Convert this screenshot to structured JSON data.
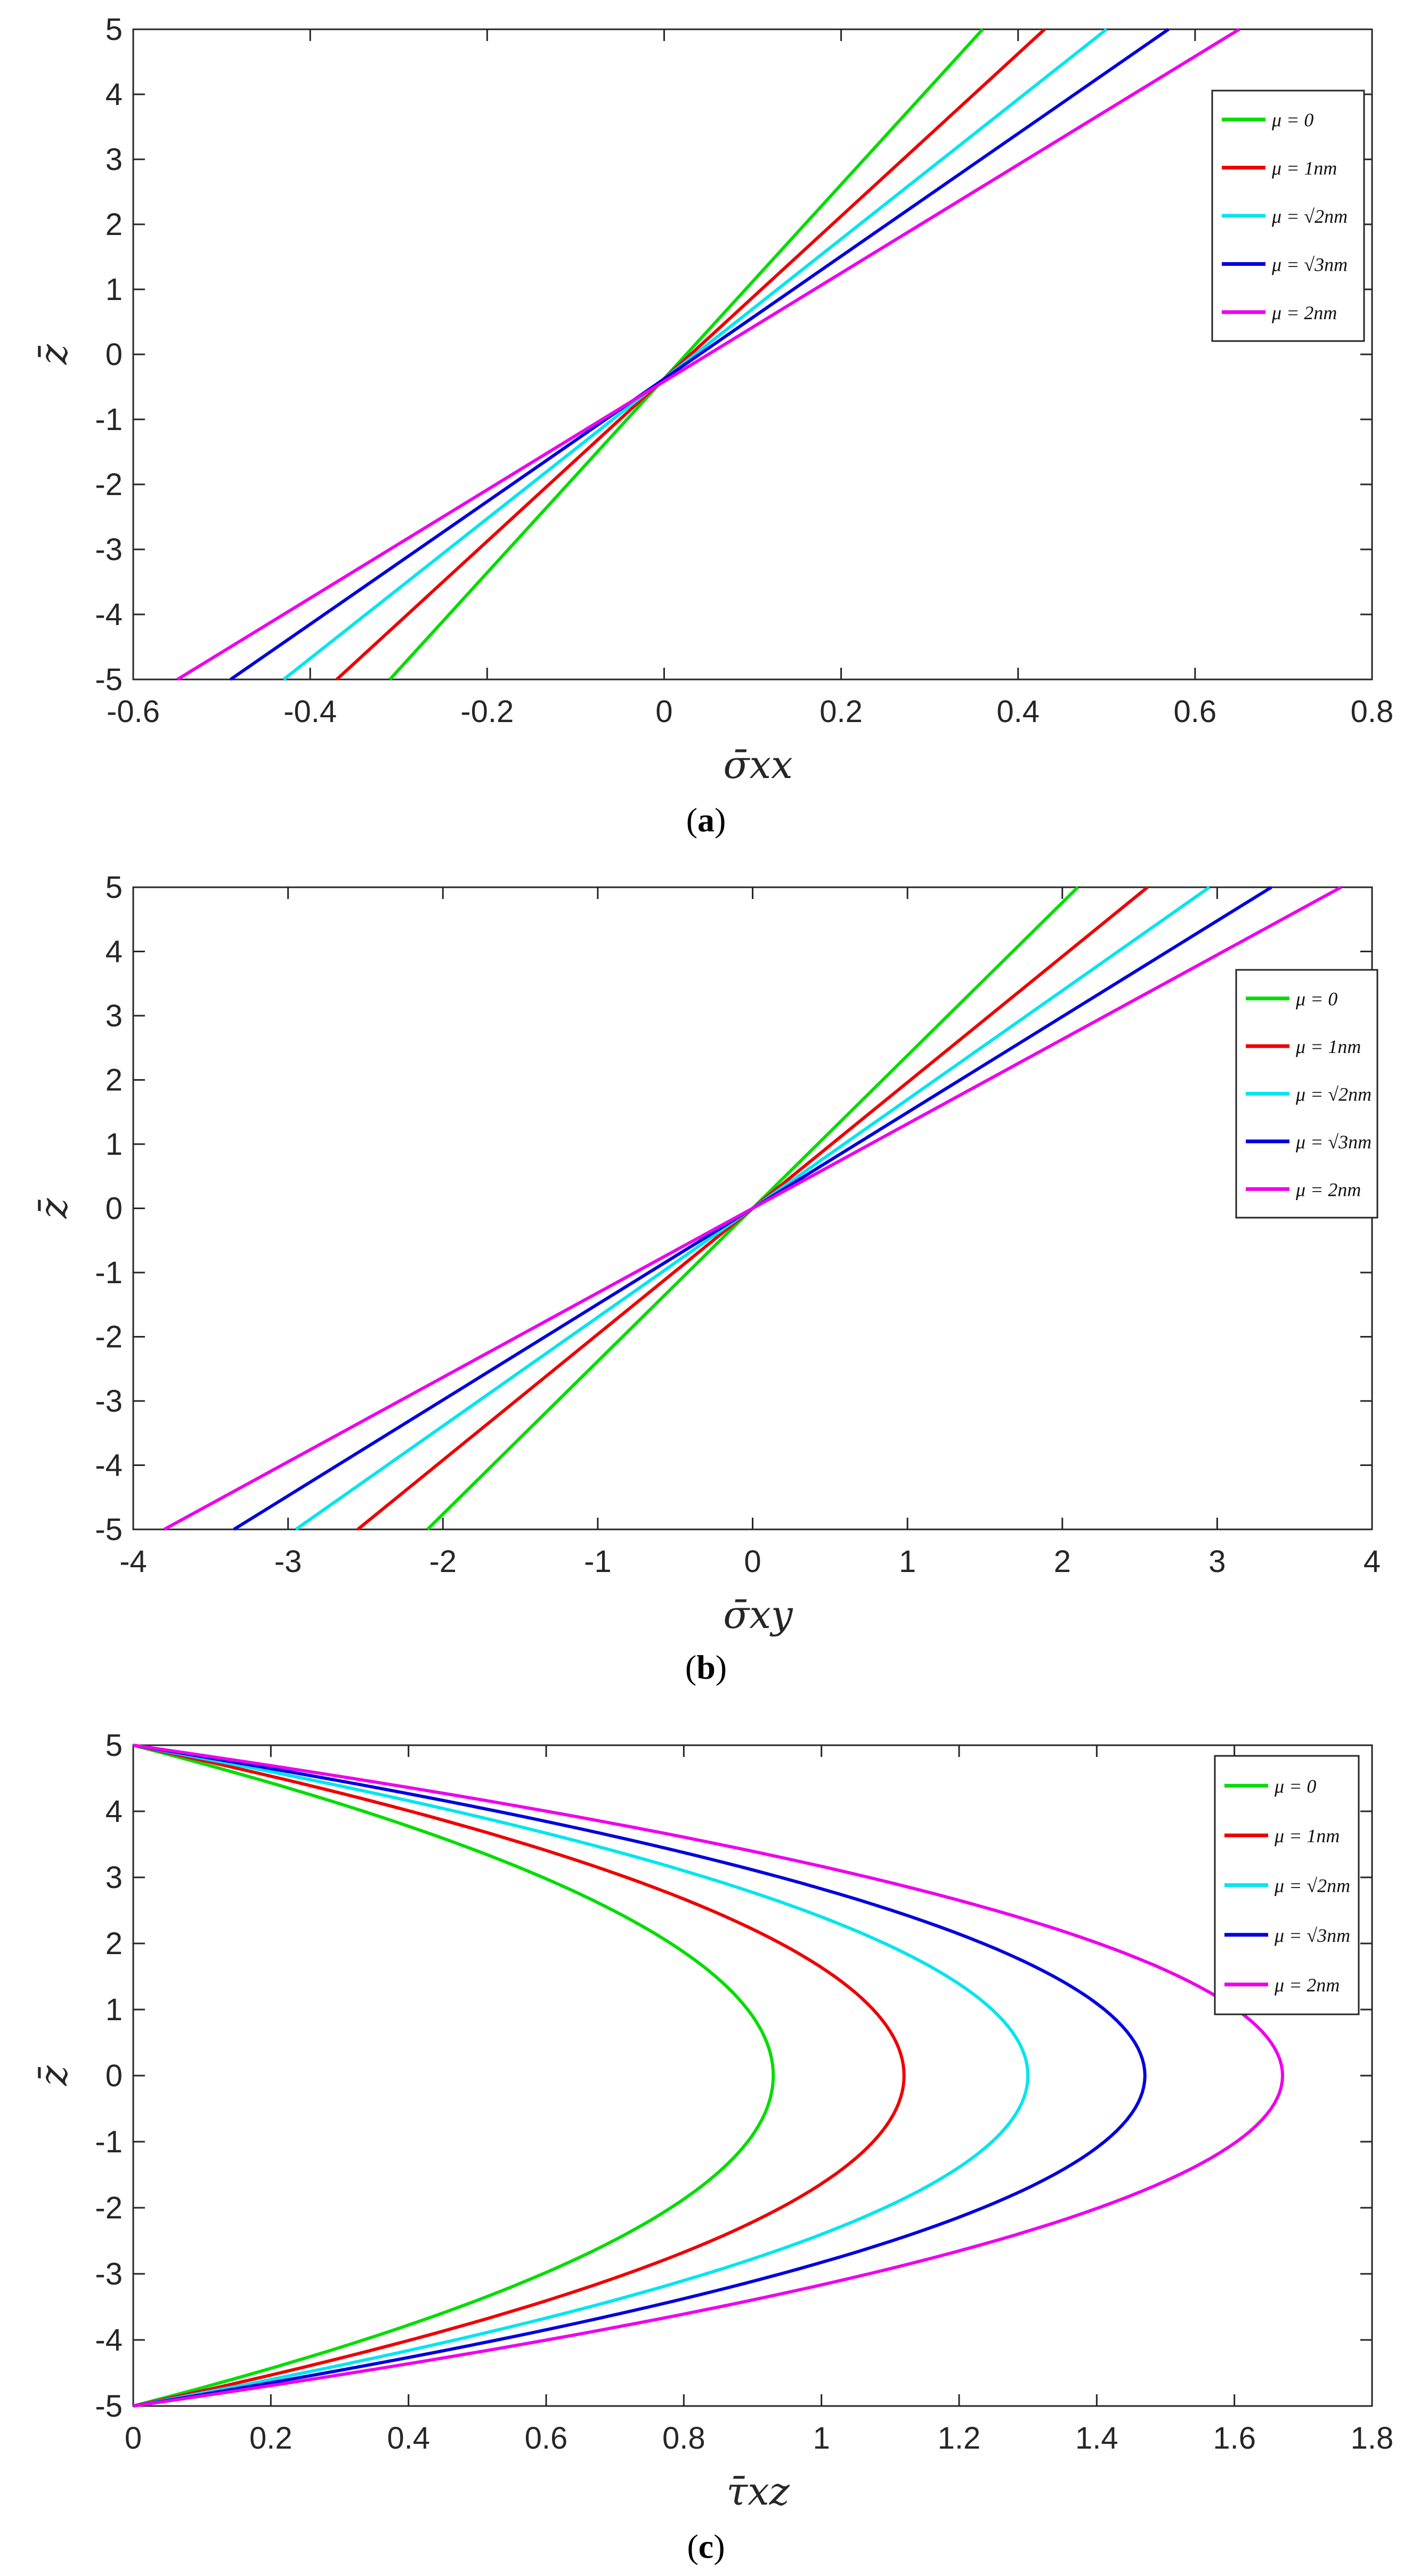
{
  "chart_data": [
    {
      "type": "line",
      "caption": "a",
      "xlabel": "σ̄xx",
      "ylabel": "z̄",
      "xlim": [
        -0.6,
        0.8
      ],
      "ylim": [
        -5,
        5
      ],
      "xticks": [
        "-0.6",
        "-0.4",
        "-0.2",
        "0",
        "0.2",
        "0.4",
        "0.6",
        "0.8"
      ],
      "yticks": [
        "5",
        "4",
        "3",
        "2",
        "1",
        "0",
        "-1",
        "-2",
        "-3",
        "-4",
        "-5"
      ],
      "legend_position": "top-right",
      "series": [
        {
          "name": "μ = 0",
          "color": "#00dd00",
          "profile": "linear",
          "z": [
            -5,
            5
          ],
          "values": [
            -0.31,
            0.36
          ]
        },
        {
          "name": "μ = 1nm",
          "color": "#ee0000",
          "profile": "linear",
          "z": [
            -5,
            5
          ],
          "values": [
            -0.37,
            0.43
          ]
        },
        {
          "name": "μ = √2nm",
          "color": "#00e5ee",
          "profile": "linear",
          "z": [
            -5,
            5
          ],
          "values": [
            -0.43,
            0.5
          ]
        },
        {
          "name": "μ = √3nm",
          "color": "#0000dd",
          "profile": "linear",
          "z": [
            -5,
            5
          ],
          "values": [
            -0.49,
            0.57
          ]
        },
        {
          "name": "μ = 2nm",
          "color": "#ee00ee",
          "profile": "linear",
          "z": [
            -5,
            5
          ],
          "values": [
            -0.55,
            0.65
          ]
        }
      ]
    },
    {
      "type": "line",
      "caption": "b",
      "xlabel": "σ̄xy",
      "ylabel": "z̄",
      "xlim": [
        -4,
        4
      ],
      "ylim": [
        -5,
        5
      ],
      "xticks": [
        "-4",
        "-3",
        "-2",
        "-1",
        "0",
        "1",
        "2",
        "3",
        "4"
      ],
      "yticks": [
        "5",
        "4",
        "3",
        "2",
        "1",
        "0",
        "-1",
        "-2",
        "-3",
        "-4",
        "-5"
      ],
      "legend_position": "top-right",
      "series": [
        {
          "name": "μ = 0",
          "color": "#00dd00",
          "profile": "linear",
          "z": [
            -5,
            5
          ],
          "values": [
            -2.1,
            2.1
          ]
        },
        {
          "name": "μ = 1nm",
          "color": "#ee0000",
          "profile": "linear",
          "z": [
            -5,
            5
          ],
          "values": [
            -2.55,
            2.55
          ]
        },
        {
          "name": "μ = √2nm",
          "color": "#00e5ee",
          "profile": "linear",
          "z": [
            -5,
            5
          ],
          "values": [
            -2.95,
            2.95
          ]
        },
        {
          "name": "μ = √3nm",
          "color": "#0000dd",
          "profile": "linear",
          "z": [
            -5,
            5
          ],
          "values": [
            -3.35,
            3.35
          ]
        },
        {
          "name": "μ = 2nm",
          "color": "#ee00ee",
          "profile": "linear",
          "z": [
            -5,
            5
          ],
          "values": [
            -3.8,
            3.8
          ]
        }
      ]
    },
    {
      "type": "line",
      "caption": "c",
      "xlabel": "τ̄xz",
      "ylabel": "z̄",
      "xlim": [
        0,
        1.8
      ],
      "ylim": [
        -5,
        5
      ],
      "xticks": [
        "0",
        "0.2",
        "0.4",
        "0.6",
        "0.8",
        "1",
        "1.2",
        "1.4",
        "1.6",
        "1.8"
      ],
      "yticks": [
        "5",
        "4",
        "3",
        "2",
        "1",
        "0",
        "-1",
        "-2",
        "-3",
        "-4",
        "-5"
      ],
      "legend_position": "top-right",
      "series": [
        {
          "name": "μ = 0",
          "color": "#00dd00",
          "profile": "parabolic",
          "z": [
            -5,
            5
          ],
          "peak": 0.93
        },
        {
          "name": "μ = 1nm",
          "color": "#ee0000",
          "profile": "parabolic",
          "z": [
            -5,
            5
          ],
          "peak": 1.12
        },
        {
          "name": "μ = √2nm",
          "color": "#00e5ee",
          "profile": "parabolic",
          "z": [
            -5,
            5
          ],
          "peak": 1.3
        },
        {
          "name": "μ = √3nm",
          "color": "#0000dd",
          "profile": "parabolic",
          "z": [
            -5,
            5
          ],
          "peak": 1.47
        },
        {
          "name": "μ = 2nm",
          "color": "#ee00ee",
          "profile": "parabolic",
          "z": [
            -5,
            5
          ],
          "peak": 1.67
        }
      ]
    }
  ]
}
